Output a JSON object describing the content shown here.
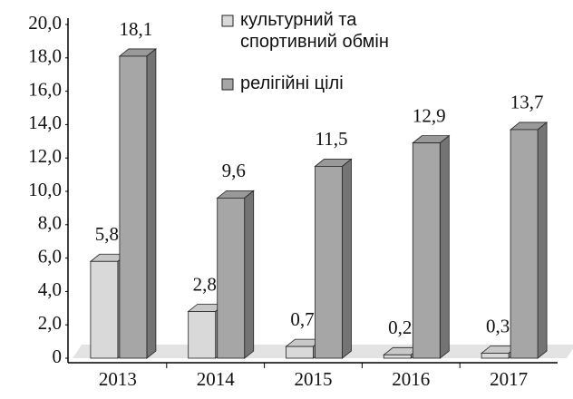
{
  "chart_data": {
    "type": "bar3d",
    "categories": [
      "2013",
      "2014",
      "2015",
      "2016",
      "2017"
    ],
    "series": [
      {
        "name": "культурний та спортивний обмін",
        "color": "#d9d9d9",
        "values": [
          5.8,
          2.8,
          0.7,
          0.2,
          0.3
        ],
        "value_labels": [
          "5,8",
          "2,8",
          "0,7",
          "0,2",
          "0,3"
        ]
      },
      {
        "name": "релігійні цілі",
        "color": "#a6a6a6",
        "values": [
          18.1,
          9.6,
          11.5,
          12.9,
          13.7
        ],
        "value_labels": [
          "18,1",
          "9,6",
          "11,5",
          "12,9",
          "13,7"
        ]
      }
    ],
    "ylim": [
      0,
      20
    ],
    "yticks": [
      0,
      {
        "value": 2,
        "label": "2,0"
      },
      {
        "value": 4,
        "label": "4,0"
      },
      {
        "value": 6,
        "label": "6,0"
      },
      {
        "value": 8,
        "label": "8,0"
      },
      {
        "value": 10,
        "label": "10,0"
      },
      {
        "value": 12,
        "label": "12,0"
      },
      {
        "value": 14,
        "label": "14,0"
      },
      {
        "value": 16,
        "label": "16,0"
      },
      {
        "value": 18,
        "label": "18,0"
      },
      {
        "value": 20,
        "label": "20,0"
      }
    ],
    "legend": "top-right"
  }
}
